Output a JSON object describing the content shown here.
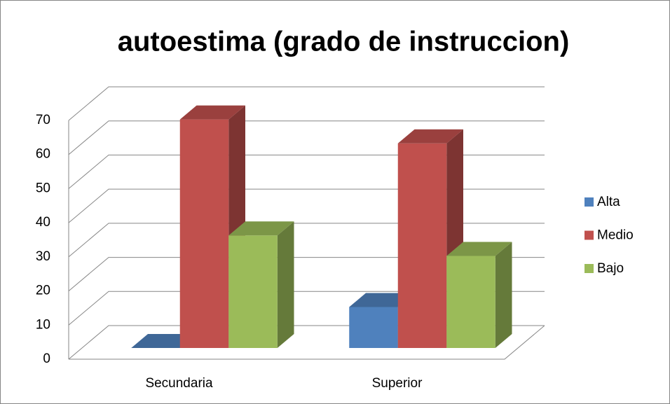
{
  "chart_data": {
    "type": "bar3d",
    "title": "autoestima (grado de instruccion)",
    "categories": [
      "Secundaria",
      "Superior"
    ],
    "series": [
      {
        "name": "Alta",
        "color": "#4f81bd",
        "values": [
          0,
          12
        ]
      },
      {
        "name": "Medio",
        "color": "#c0504d",
        "values": [
          67,
          60
        ]
      },
      {
        "name": "Bajo",
        "color": "#9bbb59",
        "values": [
          33,
          27
        ]
      }
    ],
    "ylim": [
      0,
      70
    ],
    "yticks": [
      0,
      10,
      20,
      30,
      40,
      50,
      60,
      70
    ],
    "grid": true,
    "legend": "right"
  }
}
